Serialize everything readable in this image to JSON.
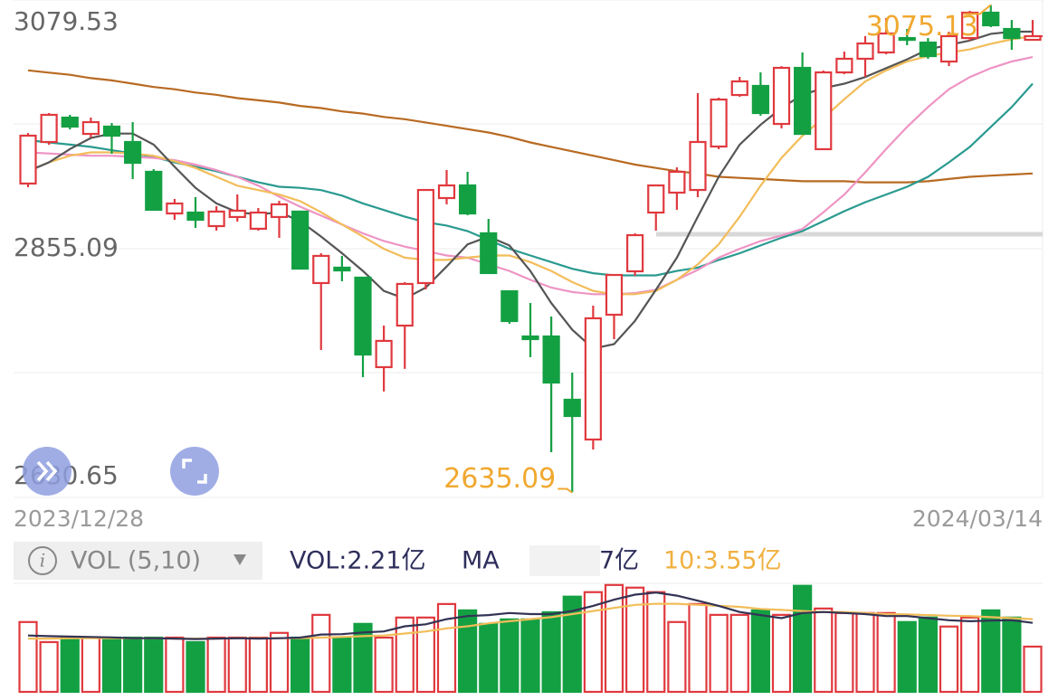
{
  "chart_data": [
    {
      "type": "candlestick",
      "categories": [
        "2023/12/28",
        null,
        null,
        null,
        null,
        null,
        null,
        null,
        null,
        null,
        null,
        null,
        null,
        null,
        null,
        null,
        null,
        null,
        null,
        null,
        null,
        null,
        null,
        null,
        null,
        null,
        null,
        null,
        null,
        null,
        null,
        null,
        null,
        null,
        null,
        null,
        null,
        null,
        null,
        null,
        null,
        null,
        null,
        null,
        null,
        null,
        null,
        null,
        "2024/03/14"
      ],
      "open": [
        2913.9,
        2951.4,
        2973.4,
        2958.7,
        2965.3,
        2951.4,
        2924.5,
        2886.9,
        2887.7,
        2875.5,
        2883.7,
        2873.1,
        2883.7,
        2888.6,
        2824.1,
        2838.0,
        2829.0,
        2748.2,
        2785.7,
        2824.1,
        2900.8,
        2912.2,
        2869.0,
        2816.7,
        2775.9,
        2775.9,
        2718.8,
        2682.9,
        2795.5,
        2834.7,
        2887.7,
        2905.7,
        2908.1,
        2947.3,
        2993.8,
        3002.0,
        2967.7,
        3018.3,
        2944.9,
        3014.2,
        3026.5,
        3032.2,
        3045.2,
        3041.1,
        3024.0,
        3045.2,
        3068.1,
        3053.4,
        3043.6
      ],
      "high": [
        2959.5,
        2977.5,
        2975.9,
        2973.4,
        2968.5,
        2969.3,
        2926.9,
        2900.0,
        2901.6,
        2893.5,
        2904.1,
        2891.8,
        2898.3,
        2888.6,
        2851.0,
        2848.6,
        2829.0,
        2785.7,
        2824.9,
        2908.1,
        2926.1,
        2924.5,
        2882.0,
        2816.7,
        2806.1,
        2793.9,
        2743.3,
        2803.7,
        2831.4,
        2869.0,
        2912.2,
        2928.5,
        2995.5,
        2991.4,
        3010.1,
        3014.2,
        3019.9,
        3032.2,
        3015.9,
        3033.0,
        3046.9,
        3063.2,
        3053.4,
        3045.2,
        3050.9,
        3069.7,
        3075.13,
        3061.5,
        3061.5
      ],
      "low": [
        2910.6,
        2948.9,
        2962.8,
        2955.5,
        2940.8,
        2917.9,
        2890.2,
        2881.2,
        2873.9,
        2871.4,
        2879.6,
        2871.4,
        2864.9,
        2837.1,
        2763.7,
        2825.7,
        2739.2,
        2726.2,
        2746.6,
        2818.4,
        2895.1,
        2885.3,
        2833.1,
        2787.4,
        2757.2,
        2671.5,
        2635.09,
        2673.9,
        2773.5,
        2830.6,
        2871.4,
        2890.2,
        2901.6,
        2944.9,
        2992.2,
        2975.1,
        2963.6,
        2958.7,
        2944.9,
        3012.6,
        3010.1,
        3030.5,
        3038.7,
        3026.5,
        3019.9,
        3042.8,
        3055.0,
        3034.6,
        3042.8
      ],
      "close": [
        2957.1,
        2975.9,
        2965.3,
        2969.3,
        2957.1,
        2932.6,
        2890.2,
        2895.9,
        2881.2,
        2888.6,
        2889.4,
        2887.7,
        2895.1,
        2837.1,
        2848.6,
        2835.5,
        2759.6,
        2771.9,
        2823.3,
        2908.1,
        2912.2,
        2886.9,
        2833.1,
        2789.8,
        2773.5,
        2734.3,
        2704.1,
        2792.3,
        2831.4,
        2867.3,
        2912.2,
        2924.5,
        2951.4,
        2989.7,
        3006.1,
        2977.5,
        3018.3,
        2958.7,
        3014.2,
        3026.5,
        3040.3,
        3049.3,
        3043.6,
        3028.9,
        3046.9,
        3068.1,
        3056.7,
        3045.2,
        3046.9
      ],
      "up_color": "#e0393e",
      "down_color": "#13a043",
      "series": [
        {
          "color": "#b86a22",
          "values": [
            3016,
            3014,
            3012,
            3009,
            3007,
            3004,
            3001,
            2999,
            2996,
            2994,
            2991,
            2989,
            2987,
            2984,
            2982,
            2979,
            2977,
            2974,
            2972,
            2969,
            2966,
            2963,
            2960,
            2956,
            2951,
            2947,
            2943,
            2939,
            2935,
            2931,
            2928,
            2925,
            2923,
            2920,
            2919,
            2918,
            2917,
            2916,
            2916,
            2916,
            2915,
            2915,
            2915,
            2916,
            2918,
            2920,
            2921,
            2922,
            2923
          ]
        },
        {
          "color": "#2a9a90",
          "values": [
            2953,
            2951,
            2949,
            2947,
            2944,
            2941,
            2938,
            2933,
            2929,
            2925,
            2920,
            2915,
            2911,
            2910,
            2908,
            2903,
            2896,
            2890,
            2884,
            2879,
            2876,
            2871,
            2863,
            2855,
            2849,
            2843,
            2837,
            2833,
            2831,
            2831,
            2831,
            2835,
            2838,
            2845,
            2851,
            2858,
            2865,
            2871,
            2880,
            2889,
            2897,
            2904,
            2911,
            2920,
            2933,
            2947,
            2965,
            2983,
            3004
          ]
        },
        {
          "color": "#ee94c4",
          "values": [
            2942,
            2941,
            2940,
            2939,
            2939,
            2938,
            2937,
            2935,
            2931,
            2926,
            2920,
            2912,
            2902,
            2893,
            2885,
            2877,
            2869,
            2862,
            2857,
            2853,
            2849,
            2847,
            2841,
            2835,
            2827,
            2820,
            2816,
            2814,
            2814,
            2815,
            2818,
            2827,
            2836,
            2847,
            2855,
            2862,
            2867,
            2873,
            2888,
            2904,
            2924,
            2945,
            2965,
            2983,
            2999,
            3010,
            3018,
            3024,
            3028
          ]
        },
        {
          "color": "#f2bd5a",
          "values": [
            2925,
            2933,
            2939,
            2942,
            2942,
            2941,
            2939,
            2934,
            2928,
            2920,
            2912,
            2908,
            2904,
            2898,
            2888,
            2877,
            2866,
            2855,
            2847,
            2845,
            2845,
            2847,
            2849,
            2849,
            2843,
            2835,
            2825,
            2817,
            2814,
            2814,
            2817,
            2827,
            2841,
            2859,
            2884,
            2912,
            2937,
            2957,
            2973,
            2990,
            3006,
            3016,
            3024,
            3029,
            3032,
            3035,
            3040,
            3044,
            3047
          ]
        },
        {
          "color": "#555555",
          "values": [
            2925,
            2933,
            2945,
            2955,
            2959,
            2959,
            2949,
            2929,
            2910,
            2896,
            2888,
            2886,
            2888,
            2880,
            2866,
            2851,
            2835,
            2817,
            2810,
            2820,
            2839,
            2859,
            2866,
            2858,
            2835,
            2806,
            2782,
            2765,
            2769,
            2790,
            2818,
            2847,
            2884,
            2920,
            2949,
            2967,
            2982,
            2994,
            3000,
            3004,
            3010,
            3018,
            3026,
            3035,
            3039,
            3043,
            3049,
            3051,
            3051
          ]
        }
      ],
      "ylim": [
        2630.65,
        3079.53
      ],
      "yticks": [
        2630.65,
        2855.09,
        3079.53
      ],
      "grid": true
    },
    {
      "type": "bar",
      "tab": "VOL (5,10)",
      "legend": [
        "VOL:2.21亿",
        "MA",
        "7亿",
        "10:3.55亿"
      ],
      "values": [
        3.41,
        2.43,
        2.65,
        2.65,
        2.65,
        2.65,
        2.65,
        2.65,
        2.43,
        2.65,
        2.65,
        2.65,
        2.88,
        2.65,
        3.76,
        2.65,
        3.32,
        2.65,
        3.63,
        3.63,
        4.29,
        3.98,
        3.32,
        3.54,
        3.54,
        3.89,
        4.65,
        4.87,
        5.22,
        5.09,
        4.87,
        3.41,
        4.29,
        3.76,
        3.76,
        3.98,
        3.76,
        5.18,
        4.07,
        3.85,
        3.85,
        3.85,
        3.41,
        3.63,
        3.19,
        3.63,
        3.98,
        3.63,
        2.21
      ],
      "series": [
        {
          "color": "#f2bd5a",
          "values": [
            2.6,
            2.6,
            2.62,
            2.62,
            2.62,
            2.62,
            2.62,
            2.6,
            2.6,
            2.6,
            2.62,
            2.62,
            2.62,
            2.62,
            2.65,
            2.68,
            2.72,
            2.75,
            2.85,
            2.95,
            3.1,
            3.2,
            3.35,
            3.45,
            3.55,
            3.65,
            3.8,
            3.95,
            4.1,
            4.25,
            4.3,
            4.3,
            4.25,
            4.2,
            4.15,
            4.05,
            4.0,
            3.95,
            3.9,
            3.9,
            3.85,
            3.8,
            3.78,
            3.75,
            3.72,
            3.7,
            3.65,
            3.6,
            3.55
          ]
        },
        {
          "color": "#333355",
          "values": [
            2.75,
            2.72,
            2.7,
            2.68,
            2.66,
            2.62,
            2.62,
            2.6,
            2.58,
            2.6,
            2.62,
            2.6,
            2.62,
            2.65,
            2.8,
            2.82,
            2.9,
            2.95,
            3.2,
            3.3,
            3.55,
            3.7,
            3.75,
            3.85,
            3.8,
            3.8,
            3.95,
            4.2,
            4.5,
            4.75,
            4.85,
            4.7,
            4.45,
            4.2,
            3.9,
            3.75,
            3.6,
            3.85,
            3.9,
            3.85,
            3.8,
            3.7,
            3.7,
            3.6,
            3.5,
            3.45,
            3.48,
            3.5,
            3.37
          ]
        }
      ],
      "ylim": [
        0,
        5.3
      ]
    }
  ]
}
